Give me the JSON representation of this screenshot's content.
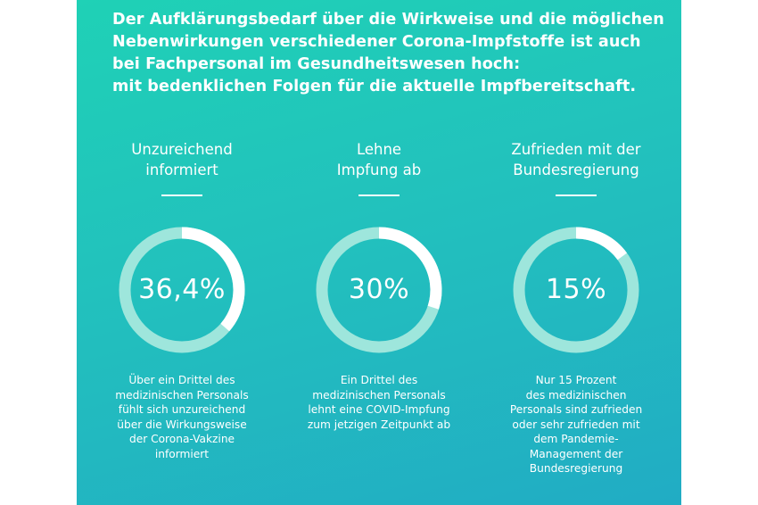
{
  "headline": [
    "Der Aufklärungsbedarf über die Wirkweise und die möglichen",
    "Nebenwirkungen verschiedener Corona-Impfstoffe ist auch",
    "bei Fachpersonal im Gesundheitswesen hoch:",
    "mit bedenklichen Folgen für die aktuelle Impfbereitschaft."
  ],
  "colors": {
    "ring_track": "#9ee6dc",
    "ring_fill": "#ffffff",
    "text": "#ffffff"
  },
  "chart_data": {
    "type": "donut",
    "items": [
      {
        "title": "Unzureichend\ninformiert",
        "value": 36.4,
        "value_label": "36,4%",
        "description": "Über ein Drittel des\nmedizinischen Personals\nfühlt sich unzureichend\nüber die Wirkungsweise\nder Corona-Vakzine\ninformiert"
      },
      {
        "title": "Lehne\nImpfung ab",
        "value": 30,
        "value_label": "30%",
        "description": "Ein Drittel des\nmedizinischen Personals\nlehnt eine COVID-Impfung\nzum jetzigen Zeitpunkt ab"
      },
      {
        "title": "Zufrieden mit der\nBundesregierung",
        "value": 15,
        "value_label": "15%",
        "description": "Nur 15 Prozent\ndes medizinischen\nPersonals sind zufrieden\noder sehr zufrieden mit\ndem Pandemie-\nManagement der\nBundesregierung"
      }
    ]
  }
}
